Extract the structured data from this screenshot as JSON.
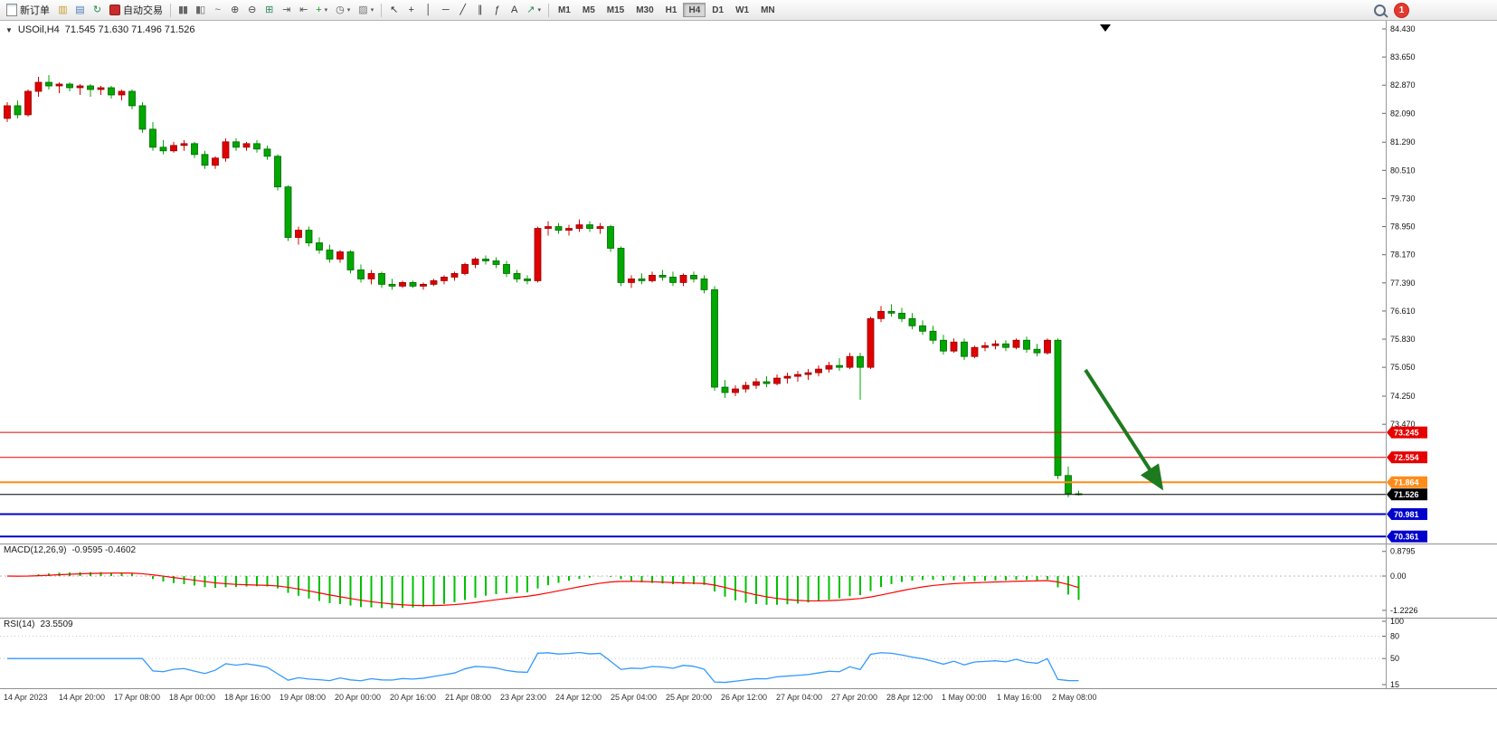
{
  "toolbar": {
    "new_order_label": "新订单",
    "autotrading_label": "自动交易",
    "notification_count": "1",
    "left_icons": [
      {
        "name": "new-chart-icon",
        "glyph": "▥",
        "color": "#c89b2a"
      },
      {
        "name": "profiles-icon",
        "glyph": "▤",
        "color": "#4a7ab5"
      },
      {
        "name": "refresh-icon",
        "glyph": "↻",
        "color": "#2e8b57"
      }
    ],
    "chart_icons": [
      {
        "name": "bars-chart-button",
        "glyph": "▮▮",
        "color": "#666666"
      },
      {
        "name": "candlestick-chart-button",
        "glyph": "▮▯",
        "color": "#666666"
      },
      {
        "name": "line-chart-button",
        "glyph": "~",
        "color": "#666666"
      },
      {
        "name": "zoom-in-button",
        "glyph": "⊕",
        "color": "#444444"
      },
      {
        "name": "zoom-out-button",
        "glyph": "⊖",
        "color": "#444444"
      },
      {
        "name": "tile-windows-button",
        "glyph": "⊞",
        "color": "#2e8b57"
      },
      {
        "name": "auto-scroll-button",
        "glyph": "⇥",
        "color": "#555555"
      },
      {
        "name": "chart-shift-button",
        "glyph": "⇤",
        "color": "#555555"
      },
      {
        "name": "indicators-button",
        "glyph": "+",
        "color": "#1a9a1a",
        "dropdown": true
      },
      {
        "name": "periods-button",
        "glyph": "◷",
        "color": "#555555",
        "dropdown": true
      },
      {
        "name": "templates-button",
        "glyph": "▨",
        "color": "#777777",
        "dropdown": true
      }
    ],
    "tool_icons": [
      {
        "name": "cursor-button",
        "glyph": "↖",
        "color": "#333333"
      },
      {
        "name": "crosshair-button",
        "glyph": "+",
        "color": "#333333"
      },
      {
        "name": "vertical-line-button",
        "glyph": "│",
        "color": "#333333"
      },
      {
        "name": "horizontal-line-button",
        "glyph": "─",
        "color": "#333333"
      },
      {
        "name": "trendline-button",
        "glyph": "╱",
        "color": "#333333"
      },
      {
        "name": "channel-button",
        "glyph": "∥",
        "color": "#333333"
      },
      {
        "name": "fibonacci-button",
        "glyph": "ƒ",
        "color": "#333333"
      },
      {
        "name": "text-button",
        "glyph": "A",
        "color": "#333333"
      },
      {
        "name": "arrows-button",
        "glyph": "↗",
        "color": "#2e8b57",
        "dropdown": true
      }
    ],
    "timeframes": [
      "M1",
      "M5",
      "M15",
      "M30",
      "H1",
      "H4",
      "D1",
      "W1",
      "MN"
    ],
    "active_timeframe": "H4"
  },
  "chart": {
    "expand_glyph": "▼",
    "symbol_label": "USOil,H4",
    "ohlc_label": "71.545 71.630 71.496 71.526",
    "bull_color": "#e00000",
    "bear_color": "#00a800",
    "y_ticks": [
      "84.430",
      "83.650",
      "82.870",
      "82.090",
      "81.290",
      "80.510",
      "79.730",
      "78.950",
      "78.170",
      "77.390",
      "76.610",
      "75.830",
      "75.050",
      "74.250",
      "73.470"
    ],
    "hlines": [
      {
        "price": 73.245,
        "label": "73.245",
        "color": "#e60000",
        "width": 1
      },
      {
        "price": 72.554,
        "label": "72.554",
        "color": "#e60000",
        "width": 1
      },
      {
        "price": 71.864,
        "label": "71.864",
        "color": "#ff8c1a",
        "width": 2
      },
      {
        "price": 71.526,
        "label": "71.526",
        "color": "#000000",
        "width": 1
      },
      {
        "price": 70.981,
        "label": "70.981",
        "color": "#0000cc",
        "width": 2
      },
      {
        "price": 70.361,
        "label": "70.361",
        "color": "#0000cc",
        "width": 2
      }
    ],
    "arrow_color": "#1e7a1e"
  },
  "macd": {
    "name": "MACD(12,26,9)",
    "values": "-0.9595 -0.4602",
    "axis": [
      "0.8795",
      "0.00",
      "-1.2226"
    ],
    "histogram_color": "#00c000",
    "signal_color": "#ff0000"
  },
  "rsi": {
    "name": "RSI(14)",
    "value": "23.5509",
    "axis": [
      "100",
      "80",
      "50",
      "15"
    ],
    "line_color": "#3399ff"
  },
  "time_axis": [
    "14 Apr 2023",
    "14 Apr 20:00",
    "17 Apr 08:00",
    "18 Apr 00:00",
    "18 Apr 16:00",
    "19 Apr 08:00",
    "20 Apr 00:00",
    "20 Apr 16:00",
    "21 Apr 08:00",
    "23 Apr 23:00",
    "24 Apr 12:00",
    "25 Apr 04:00",
    "25 Apr 20:00",
    "26 Apr 12:00",
    "27 Apr 04:00",
    "27 Apr 20:00",
    "28 Apr 12:00",
    "1 May 00:00",
    "1 May 16:00",
    "2 May 08:00"
  ],
  "chart_data": {
    "type": "candlestick",
    "symbol": "USOil",
    "timeframe": "H4",
    "title": "USOil,H4 71.545 71.630 71.496 71.526",
    "last_bar": {
      "open": 71.545,
      "high": 71.63,
      "low": 71.496,
      "close": 71.526
    },
    "y_axis": {
      "min": 70.35,
      "max": 84.43,
      "visible_ticks": [
        84.43,
        83.65,
        82.87,
        82.09,
        81.29,
        80.51,
        79.73,
        78.95,
        78.17,
        77.39,
        76.61,
        75.83,
        75.05,
        74.25,
        73.47
      ]
    },
    "horizontal_levels": [
      {
        "value": 73.245,
        "color": "red"
      },
      {
        "value": 72.554,
        "color": "red"
      },
      {
        "value": 71.864,
        "color": "orange"
      },
      {
        "value": 71.526,
        "color": "black"
      },
      {
        "value": 70.981,
        "color": "blue"
      },
      {
        "value": 70.361,
        "color": "blue"
      }
    ],
    "annotations": [
      {
        "type": "arrow",
        "direction": "down-right",
        "color": "green"
      }
    ],
    "indicators": [
      {
        "name": "MACD",
        "params": [
          12,
          26,
          9
        ],
        "current_values": [
          -0.9595,
          -0.4602
        ],
        "axis_range": [
          -1.2226,
          0.8795
        ]
      },
      {
        "name": "RSI",
        "params": [
          14
        ],
        "current_value": 23.5509,
        "axis_range": [
          15,
          100
        ]
      }
    ],
    "x_labels": [
      "14 Apr 2023",
      "14 Apr 20:00",
      "17 Apr 08:00",
      "18 Apr 00:00",
      "18 Apr 16:00",
      "19 Apr 08:00",
      "20 Apr 00:00",
      "20 Apr 16:00",
      "21 Apr 08:00",
      "23 Apr 23:00",
      "24 Apr 12:00",
      "25 Apr 04:00",
      "25 Apr 20:00",
      "26 Apr 12:00",
      "27 Apr 04:00",
      "27 Apr 20:00",
      "28 Apr 12:00",
      "1 May 00:00",
      "1 May 16:00",
      "2 May 08:00"
    ],
    "candles_ohlc": [
      [
        81.95,
        82.4,
        81.85,
        82.3
      ],
      [
        82.3,
        82.45,
        81.95,
        82.05
      ],
      [
        82.05,
        82.75,
        82.0,
        82.7
      ],
      [
        82.7,
        83.1,
        82.55,
        82.95
      ],
      [
        82.95,
        83.15,
        82.75,
        82.85
      ],
      [
        82.85,
        82.95,
        82.65,
        82.9
      ],
      [
        82.9,
        82.95,
        82.7,
        82.8
      ],
      [
        82.8,
        82.9,
        82.6,
        82.85
      ],
      [
        82.85,
        82.9,
        82.55,
        82.75
      ],
      [
        82.75,
        82.85,
        82.6,
        82.8
      ],
      [
        82.8,
        82.85,
        82.5,
        82.6
      ],
      [
        82.6,
        82.75,
        82.45,
        82.7
      ],
      [
        82.7,
        82.75,
        82.2,
        82.3
      ],
      [
        82.3,
        82.4,
        81.55,
        81.65
      ],
      [
        81.65,
        81.85,
        81.05,
        81.15
      ],
      [
        81.15,
        81.35,
        80.95,
        81.05
      ],
      [
        81.05,
        81.3,
        81.0,
        81.2
      ],
      [
        81.2,
        81.35,
        81.05,
        81.25
      ],
      [
        81.25,
        81.3,
        80.85,
        80.95
      ],
      [
        80.95,
        81.05,
        80.55,
        80.65
      ],
      [
        80.65,
        80.9,
        80.55,
        80.85
      ],
      [
        80.85,
        81.4,
        80.75,
        81.3
      ],
      [
        81.3,
        81.4,
        81.05,
        81.15
      ],
      [
        81.15,
        81.3,
        81.05,
        81.25
      ],
      [
        81.25,
        81.35,
        81.0,
        81.1
      ],
      [
        81.1,
        81.2,
        80.8,
        80.9
      ],
      [
        80.9,
        80.95,
        79.95,
        80.05
      ],
      [
        80.05,
        80.1,
        78.55,
        78.65
      ],
      [
        78.65,
        78.95,
        78.45,
        78.85
      ],
      [
        78.85,
        78.95,
        78.4,
        78.5
      ],
      [
        78.5,
        78.65,
        78.2,
        78.3
      ],
      [
        78.3,
        78.45,
        77.95,
        78.05
      ],
      [
        78.05,
        78.3,
        77.95,
        78.25
      ],
      [
        78.25,
        78.3,
        77.65,
        77.75
      ],
      [
        77.75,
        77.9,
        77.4,
        77.5
      ],
      [
        77.5,
        77.75,
        77.35,
        77.65
      ],
      [
        77.65,
        77.7,
        77.25,
        77.35
      ],
      [
        77.35,
        77.5,
        77.2,
        77.3
      ],
      [
        77.3,
        77.45,
        77.25,
        77.4
      ],
      [
        77.4,
        77.45,
        77.25,
        77.3
      ],
      [
        77.3,
        77.4,
        77.2,
        77.35
      ],
      [
        77.35,
        77.5,
        77.3,
        77.45
      ],
      [
        77.45,
        77.6,
        77.35,
        77.55
      ],
      [
        77.55,
        77.7,
        77.45,
        77.65
      ],
      [
        77.65,
        77.95,
        77.6,
        77.9
      ],
      [
        77.9,
        78.1,
        77.8,
        78.05
      ],
      [
        78.05,
        78.15,
        77.9,
        78.0
      ],
      [
        78.0,
        78.1,
        77.8,
        77.9
      ],
      [
        77.9,
        78.0,
        77.55,
        77.65
      ],
      [
        77.65,
        77.75,
        77.4,
        77.5
      ],
      [
        77.5,
        77.6,
        77.35,
        77.45
      ],
      [
        77.45,
        78.95,
        77.4,
        78.9
      ],
      [
        78.9,
        79.1,
        78.7,
        78.95
      ],
      [
        78.95,
        79.05,
        78.75,
        78.85
      ],
      [
        78.85,
        79.0,
        78.7,
        78.9
      ],
      [
        78.9,
        79.15,
        78.8,
        79.0
      ],
      [
        79.0,
        79.1,
        78.8,
        78.9
      ],
      [
        78.9,
        79.05,
        78.75,
        78.95
      ],
      [
        78.95,
        79.0,
        78.25,
        78.35
      ],
      [
        78.35,
        78.4,
        77.3,
        77.4
      ],
      [
        77.4,
        77.6,
        77.25,
        77.5
      ],
      [
        77.5,
        77.65,
        77.35,
        77.45
      ],
      [
        77.45,
        77.7,
        77.4,
        77.6
      ],
      [
        77.6,
        77.75,
        77.45,
        77.55
      ],
      [
        77.55,
        77.7,
        77.3,
        77.4
      ],
      [
        77.4,
        77.65,
        77.3,
        77.6
      ],
      [
        77.6,
        77.7,
        77.4,
        77.5
      ],
      [
        77.5,
        77.6,
        77.1,
        77.2
      ],
      [
        77.2,
        77.3,
        74.4,
        74.5
      ],
      [
        74.5,
        74.7,
        74.2,
        74.35
      ],
      [
        74.35,
        74.55,
        74.25,
        74.45
      ],
      [
        74.45,
        74.65,
        74.35,
        74.55
      ],
      [
        74.55,
        74.75,
        74.45,
        74.65
      ],
      [
        74.65,
        74.8,
        74.5,
        74.6
      ],
      [
        74.6,
        74.85,
        74.55,
        74.75
      ],
      [
        74.75,
        74.9,
        74.6,
        74.8
      ],
      [
        74.8,
        74.95,
        74.65,
        74.85
      ],
      [
        74.85,
        75.0,
        74.7,
        74.9
      ],
      [
        74.9,
        75.1,
        74.8,
        75.0
      ],
      [
        75.0,
        75.2,
        74.9,
        75.1
      ],
      [
        75.1,
        75.3,
        74.95,
        75.05
      ],
      [
        75.05,
        75.45,
        75.0,
        75.35
      ],
      [
        75.35,
        75.45,
        74.15,
        75.05
      ],
      [
        75.05,
        76.45,
        75.0,
        76.4
      ],
      [
        76.4,
        76.75,
        76.3,
        76.6
      ],
      [
        76.6,
        76.8,
        76.45,
        76.55
      ],
      [
        76.55,
        76.7,
        76.3,
        76.4
      ],
      [
        76.4,
        76.55,
        76.1,
        76.2
      ],
      [
        76.2,
        76.35,
        75.95,
        76.05
      ],
      [
        76.05,
        76.2,
        75.7,
        75.8
      ],
      [
        75.8,
        75.95,
        75.4,
        75.5
      ],
      [
        75.5,
        75.85,
        75.45,
        75.75
      ],
      [
        75.75,
        75.85,
        75.25,
        75.35
      ],
      [
        75.35,
        75.65,
        75.3,
        75.6
      ],
      [
        75.6,
        75.75,
        75.5,
        75.65
      ],
      [
        75.65,
        75.8,
        75.55,
        75.7
      ],
      [
        75.7,
        75.8,
        75.5,
        75.6
      ],
      [
        75.6,
        75.85,
        75.55,
        75.8
      ],
      [
        75.8,
        75.9,
        75.45,
        75.55
      ],
      [
        75.55,
        75.7,
        75.35,
        75.45
      ],
      [
        75.45,
        75.85,
        75.4,
        75.8
      ],
      [
        75.8,
        75.85,
        71.95,
        72.05
      ],
      [
        72.05,
        72.3,
        71.45,
        71.55
      ],
      [
        71.545,
        71.63,
        71.496,
        71.526
      ]
    ]
  }
}
